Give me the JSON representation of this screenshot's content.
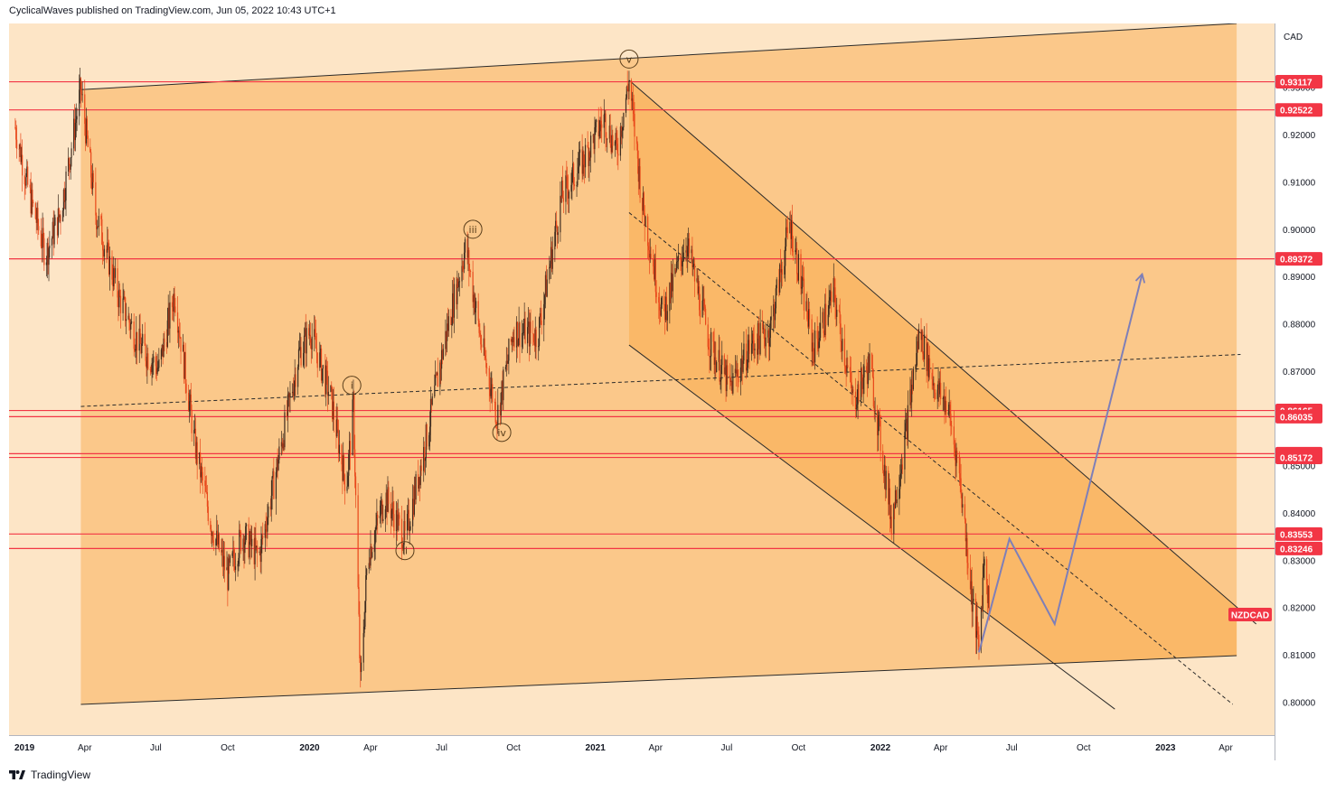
{
  "header": {
    "publisher_line": "CyclicalWaves published on TradingView.com, Jun 05, 2022 10:43 UTC+1"
  },
  "footer": {
    "brand": "TradingView"
  },
  "colors": {
    "background_light": "#fde5c6",
    "channel_fill": "#fbc88a",
    "inner_channel_fill": "#fab868",
    "level_line": "#f23645",
    "candle_up": "#3d2b1f",
    "candle_down": "#e8481b",
    "projection": "#7e7fb8"
  },
  "chart_data": {
    "type": "candlestick",
    "symbol": "NZDCAD",
    "currency": "CAD",
    "ylim": [
      0.793,
      0.9435
    ],
    "x_tick_labels": [
      {
        "label": "2019",
        "date": "2019-01-01",
        "bold": true
      },
      {
        "label": "Apr",
        "date": "2019-04-01",
        "bold": false
      },
      {
        "label": "Jul",
        "date": "2019-07-01",
        "bold": false
      },
      {
        "label": "Oct",
        "date": "2019-10-01",
        "bold": false
      },
      {
        "label": "2020",
        "date": "2020-01-01",
        "bold": true
      },
      {
        "label": "Apr",
        "date": "2020-04-01",
        "bold": false
      },
      {
        "label": "Jul",
        "date": "2020-07-01",
        "bold": false
      },
      {
        "label": "Oct",
        "date": "2020-10-01",
        "bold": false
      },
      {
        "label": "2021",
        "date": "2021-01-01",
        "bold": true
      },
      {
        "label": "Apr",
        "date": "2021-04-01",
        "bold": false
      },
      {
        "label": "Jul",
        "date": "2021-07-01",
        "bold": false
      },
      {
        "label": "Oct",
        "date": "2021-10-01",
        "bold": false
      },
      {
        "label": "2022",
        "date": "2022-01-01",
        "bold": true
      },
      {
        "label": "Apr",
        "date": "2022-04-01",
        "bold": false
      },
      {
        "label": "Jul",
        "date": "2022-07-01",
        "bold": false
      },
      {
        "label": "Oct",
        "date": "2022-10-01",
        "bold": false
      },
      {
        "label": "2023",
        "date": "2023-01-01",
        "bold": true
      },
      {
        "label": "Apr",
        "date": "2023-04-01",
        "bold": false
      }
    ],
    "y_tick_labels": [
      "0.80000",
      "0.81000",
      "0.82000",
      "0.83000",
      "0.84000",
      "0.85000",
      "0.86000",
      "0.87000",
      "0.88000",
      "0.89000",
      "0.90000",
      "0.91000",
      "0.92000",
      "0.93000"
    ],
    "horizontal_levels": [
      "0.93117",
      "0.92522",
      "0.89372",
      "0.86165",
      "0.86035",
      "0.85252",
      "0.85172",
      "0.83553",
      "0.83246"
    ],
    "current_price_label": "NZDCAD",
    "current_price": 0.8185,
    "price_path": [
      {
        "date": "2019-01-02",
        "price": 0.9215
      },
      {
        "date": "2019-01-20",
        "price": 0.9075
      },
      {
        "date": "2019-02-10",
        "price": 0.8945
      },
      {
        "date": "2019-03-01",
        "price": 0.9035
      },
      {
        "date": "2019-03-20",
        "price": 0.9225
      },
      {
        "date": "2019-03-27",
        "price": 0.9295
      },
      {
        "date": "2019-04-15",
        "price": 0.9035
      },
      {
        "date": "2019-05-15",
        "price": 0.8855
      },
      {
        "date": "2019-06-10",
        "price": 0.8755
      },
      {
        "date": "2019-07-05",
        "price": 0.8705
      },
      {
        "date": "2019-07-25",
        "price": 0.8865
      },
      {
        "date": "2019-08-20",
        "price": 0.8545
      },
      {
        "date": "2019-09-10",
        "price": 0.8375
      },
      {
        "date": "2019-10-01",
        "price": 0.8265
      },
      {
        "date": "2019-10-20",
        "price": 0.8355
      },
      {
        "date": "2019-11-10",
        "price": 0.8305
      },
      {
        "date": "2019-12-10",
        "price": 0.8555
      },
      {
        "date": "2019-12-31",
        "price": 0.8735
      },
      {
        "date": "2020-01-15",
        "price": 0.8785
      },
      {
        "date": "2020-02-10",
        "price": 0.8645
      },
      {
        "date": "2020-03-01",
        "price": 0.8455
      },
      {
        "date": "2020-03-10",
        "price": 0.8625
      },
      {
        "date": "2020-03-19",
        "price": 0.8035
      },
      {
        "date": "2020-03-28",
        "price": 0.8305
      },
      {
        "date": "2020-04-20",
        "price": 0.8435
      },
      {
        "date": "2020-05-15",
        "price": 0.8345
      },
      {
        "date": "2020-06-10",
        "price": 0.8545
      },
      {
        "date": "2020-07-05",
        "price": 0.8765
      },
      {
        "date": "2020-08-01",
        "price": 0.8965
      },
      {
        "date": "2020-08-20",
        "price": 0.8765
      },
      {
        "date": "2020-09-10",
        "price": 0.8605
      },
      {
        "date": "2020-10-01",
        "price": 0.8785
      },
      {
        "date": "2020-11-01",
        "price": 0.8775
      },
      {
        "date": "2020-12-01",
        "price": 0.9065
      },
      {
        "date": "2021-01-01",
        "price": 0.9155
      },
      {
        "date": "2021-01-25",
        "price": 0.9235
      },
      {
        "date": "2021-02-10",
        "price": 0.9165
      },
      {
        "date": "2021-02-26",
        "price": 0.9315
      },
      {
        "date": "2021-03-15",
        "price": 0.9055
      },
      {
        "date": "2021-04-10",
        "price": 0.8815
      },
      {
        "date": "2021-05-10",
        "price": 0.8975
      },
      {
        "date": "2021-06-10",
        "price": 0.8755
      },
      {
        "date": "2021-07-05",
        "price": 0.8665
      },
      {
        "date": "2021-08-01",
        "price": 0.8755
      },
      {
        "date": "2021-08-25",
        "price": 0.8785
      },
      {
        "date": "2021-09-20",
        "price": 0.9015
      },
      {
        "date": "2021-10-20",
        "price": 0.8745
      },
      {
        "date": "2021-11-15",
        "price": 0.8865
      },
      {
        "date": "2021-12-10",
        "price": 0.8635
      },
      {
        "date": "2021-12-31",
        "price": 0.8715
      },
      {
        "date": "2022-01-28",
        "price": 0.8385
      },
      {
        "date": "2022-02-15",
        "price": 0.8565
      },
      {
        "date": "2022-03-05",
        "price": 0.8785
      },
      {
        "date": "2022-03-25",
        "price": 0.8665
      },
      {
        "date": "2022-04-10",
        "price": 0.8625
      },
      {
        "date": "2022-04-25",
        "price": 0.8485
      },
      {
        "date": "2022-05-12",
        "price": 0.8205
      },
      {
        "date": "2022-05-20",
        "price": 0.8115
      },
      {
        "date": "2022-05-27",
        "price": 0.8315
      },
      {
        "date": "2022-06-03",
        "price": 0.8185
      }
    ],
    "wave_labels": [
      {
        "label": "v",
        "date": "2021-02-26",
        "price": 0.9335,
        "position": "above"
      },
      {
        "label": "iii",
        "date": "2020-08-10",
        "price": 0.8975,
        "position": "above"
      },
      {
        "label": "i",
        "date": "2020-03-08",
        "price": 0.8645,
        "position": "above"
      },
      {
        "label": "ii",
        "date": "2020-05-15",
        "price": 0.8345,
        "position": "below"
      },
      {
        "label": "iv",
        "date": "2020-09-16",
        "price": 0.8595,
        "position": "below"
      }
    ],
    "outer_channel": {
      "upper": [
        {
          "date": "2019-03-27",
          "price": 0.9295
        },
        {
          "date": "2023-04-15",
          "price": 0.9435
        }
      ],
      "lower": [
        {
          "date": "2019-03-27",
          "price": 0.7995
        },
        {
          "date": "2023-04-15",
          "price": 0.8098
        }
      ],
      "midline": [
        {
          "date": "2019-03-27",
          "price": 0.8625
        },
        {
          "date": "2023-04-20",
          "price": 0.8735
        }
      ]
    },
    "inner_channel": {
      "upper": [
        {
          "date": "2021-02-26",
          "price": 0.9315
        },
        {
          "date": "2023-05-10",
          "price": 0.8165
        }
      ],
      "lower": [
        {
          "date": "2021-02-26",
          "price": 0.8755
        },
        {
          "date": "2022-11-10",
          "price": 0.7985
        }
      ],
      "midline": [
        {
          "date": "2021-02-26",
          "price": 0.9035
        },
        {
          "date": "2023-04-10",
          "price": 0.7995
        }
      ]
    },
    "projection_path": [
      {
        "date": "2022-05-20",
        "price": 0.8105
      },
      {
        "date": "2022-06-28",
        "price": 0.8345
      },
      {
        "date": "2022-08-25",
        "price": 0.8165
      },
      {
        "date": "2022-12-15",
        "price": 0.8905
      }
    ]
  }
}
